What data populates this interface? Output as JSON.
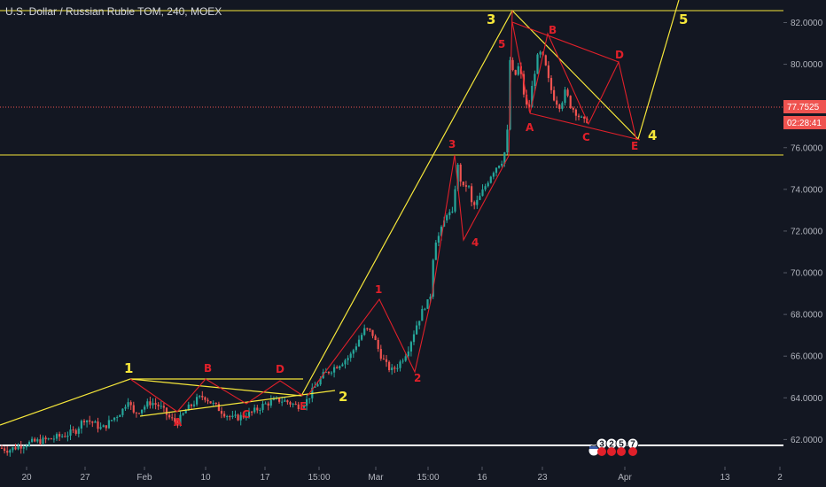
{
  "header": {
    "title": "U.S. Dollar / Russian Ruble TOM, 240, MOEX"
  },
  "price": {
    "last": "77.7525",
    "countdown": "02:28:41"
  },
  "events": {
    "badges": [
      "3",
      "2",
      "5",
      "7"
    ]
  },
  "colors": {
    "background": "#131722",
    "up": "#26a69a",
    "down": "#ef5350",
    "wave_primary": "#f5e63a",
    "wave_secondary": "#e0202a",
    "last_price": "#ef5350"
  },
  "chart_data": {
    "type": "candlestick",
    "title": "U.S. Dollar / Russian Ruble TOM, 240, MOEX",
    "ylim": [
      60.7,
      82.7
    ],
    "y_ticks": [
      "62.0000",
      "64.0000",
      "66.0000",
      "68.0000",
      "70.0000",
      "72.0000",
      "74.0000",
      "76.0000",
      "78.0000",
      "80.0000",
      "82.0000"
    ],
    "x_ticks": [
      "20",
      "27",
      "Feb",
      "10",
      "17",
      "15:00",
      "Mar",
      "15:00",
      "16",
      "23",
      "Apr",
      "13",
      "2"
    ],
    "grid": false,
    "close_path": [
      [
        0,
        61.6
      ],
      [
        10,
        61.5
      ],
      [
        22,
        61.7
      ],
      [
        30,
        61.8
      ],
      [
        40,
        61.9
      ],
      [
        55,
        62.0
      ],
      [
        72,
        62.2
      ],
      [
        85,
        62.4
      ],
      [
        95,
        63.0
      ],
      [
        105,
        62.8
      ],
      [
        115,
        62.5
      ],
      [
        125,
        62.9
      ],
      [
        138,
        63.4
      ],
      [
        145,
        64.0
      ],
      [
        150,
        63.2
      ],
      [
        160,
        63.5
      ],
      [
        170,
        63.8
      ],
      [
        180,
        63.6
      ],
      [
        192,
        63.0
      ],
      [
        200,
        62.8
      ],
      [
        210,
        63.4
      ],
      [
        222,
        63.9
      ],
      [
        230,
        64.1
      ],
      [
        240,
        63.7
      ],
      [
        252,
        63.3
      ],
      [
        262,
        63.0
      ],
      [
        272,
        63.1
      ],
      [
        285,
        63.3
      ],
      [
        295,
        63.6
      ],
      [
        305,
        63.8
      ],
      [
        315,
        63.9
      ],
      [
        325,
        63.8
      ],
      [
        335,
        63.6
      ],
      [
        345,
        63.8
      ],
      [
        355,
        64.5
      ],
      [
        365,
        65.1
      ],
      [
        375,
        65.4
      ],
      [
        385,
        65.7
      ],
      [
        395,
        66.0
      ],
      [
        405,
        66.8
      ],
      [
        412,
        67.3
      ],
      [
        420,
        67.1
      ],
      [
        428,
        66.2
      ],
      [
        435,
        65.6
      ],
      [
        442,
        65.3
      ],
      [
        450,
        65.6
      ],
      [
        460,
        66.3
      ],
      [
        470,
        67.5
      ],
      [
        480,
        68.5
      ],
      [
        485,
        68.6
      ],
      [
        490,
        71.5
      ],
      [
        496,
        71.8
      ],
      [
        500,
        72.3
      ],
      [
        505,
        73.0
      ],
      [
        510,
        72.6
      ],
      [
        516,
        75.2
      ],
      [
        522,
        74.0
      ],
      [
        528,
        74.3
      ],
      [
        533,
        73.1
      ],
      [
        540,
        73.5
      ],
      [
        548,
        74.2
      ],
      [
        555,
        74.8
      ],
      [
        562,
        75.2
      ],
      [
        567,
        75.4
      ],
      [
        572,
        76.2
      ],
      [
        575,
        80.3
      ],
      [
        580,
        79.3
      ],
      [
        586,
        80.0
      ],
      [
        590,
        78.8
      ],
      [
        596,
        77.6
      ],
      [
        602,
        79.4
      ],
      [
        608,
        80.6
      ],
      [
        614,
        80.2
      ],
      [
        620,
        79.0
      ],
      [
        626,
        78.3
      ],
      [
        632,
        78.0
      ],
      [
        638,
        78.7
      ],
      [
        644,
        78.0
      ],
      [
        650,
        77.7
      ],
      [
        655,
        77.4
      ],
      [
        660,
        77.2
      ],
      [
        665,
        77.5
      ]
    ],
    "wave_labels_primary": [
      "1",
      "2",
      "3",
      "4",
      "5"
    ],
    "wave_labels_secondary": [
      "A",
      "B",
      "C",
      "D",
      "E",
      "1",
      "2",
      "3",
      "4",
      "5",
      "A",
      "B",
      "C",
      "D",
      "E"
    ]
  }
}
